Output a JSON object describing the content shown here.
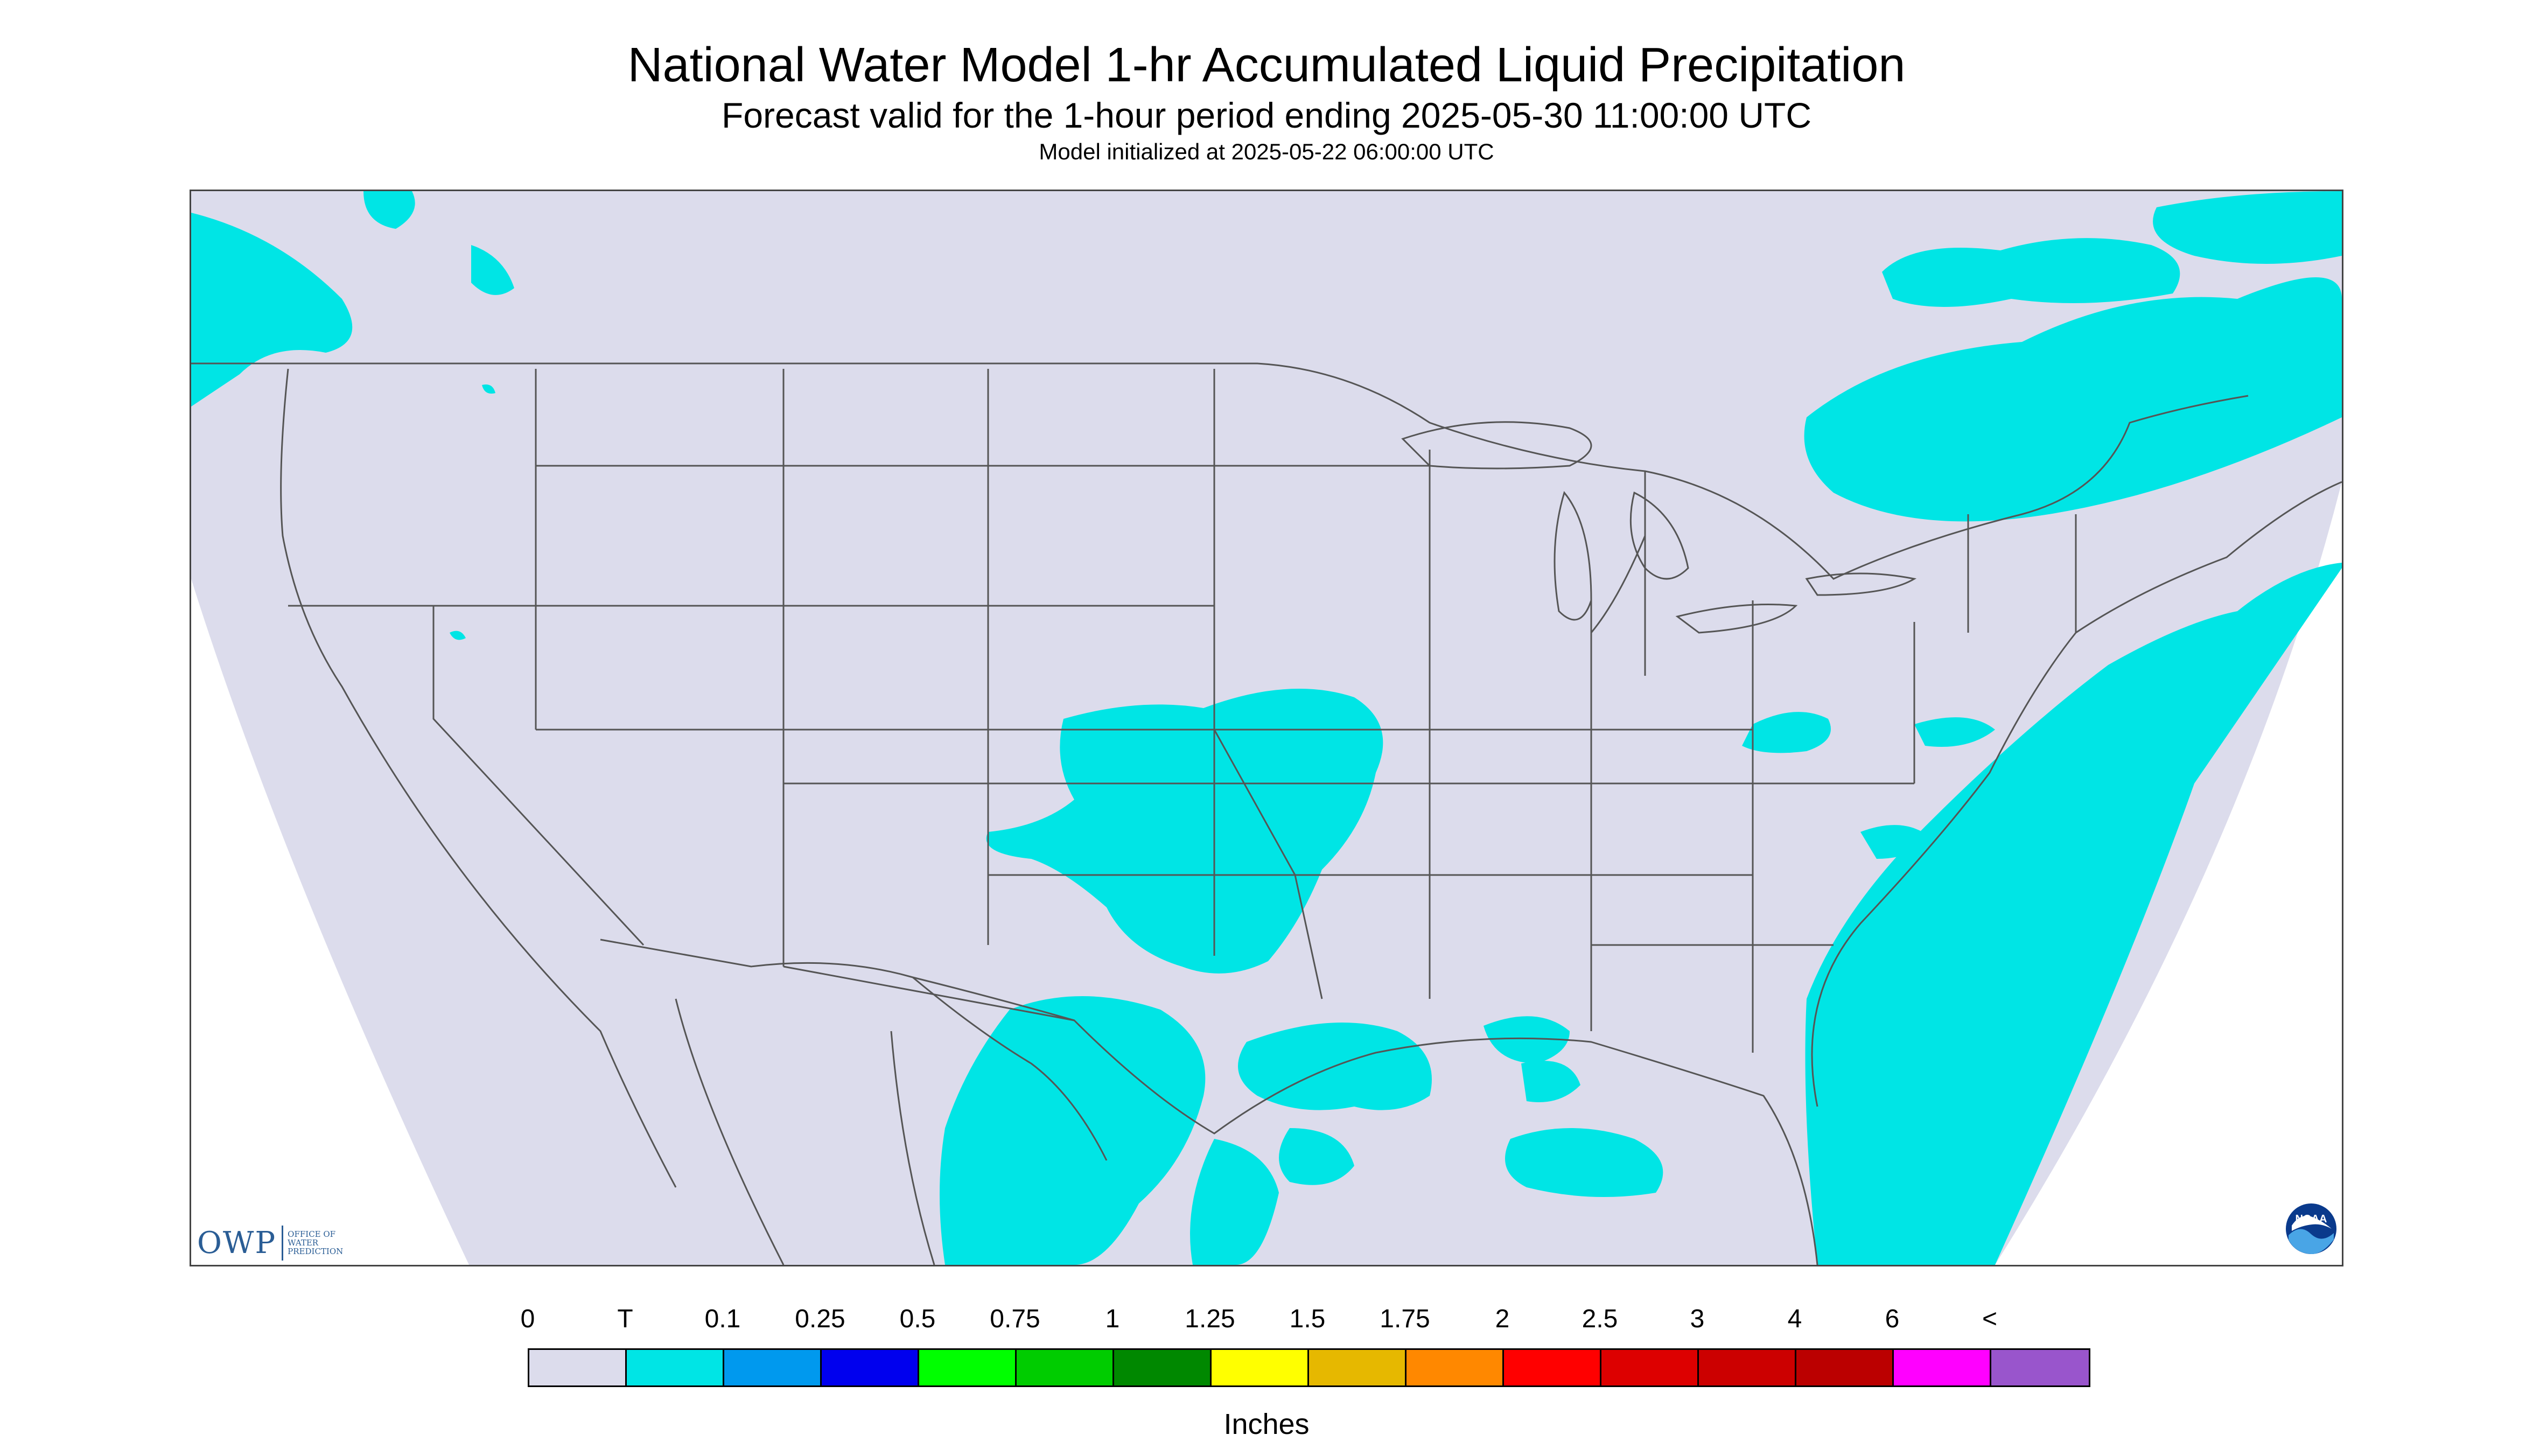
{
  "header": {
    "title": "National Water Model 1-hr Accumulated Liquid Precipitation",
    "subtitle": "Forecast valid for the 1-hour period ending 2025-05-30 11:00:00 UTC",
    "init_line": "Model initialized at 2025-05-22 06:00:00 UTC"
  },
  "map": {
    "region": "Continental United States",
    "background_color": "#dcdcec",
    "outside_domain_color": "#ffffff",
    "precip_color": "#00e5e5",
    "border_color": "#555555"
  },
  "logos": {
    "owp": {
      "text": "OWP",
      "sub": "OFFICE OF WATER PREDICTION"
    },
    "noaa": {
      "text": "NOAA"
    }
  },
  "legend": {
    "units": "Inches",
    "labels": [
      "0",
      "T",
      "0.1",
      "0.25",
      "0.5",
      "0.75",
      "1",
      "1.25",
      "1.5",
      "1.75",
      "2",
      "2.5",
      "3",
      "4",
      "6",
      "<"
    ],
    "colors": [
      "#dcdcec",
      "#00e5e5",
      "#0099ee",
      "#0000ee",
      "#00ff00",
      "#00cc00",
      "#008800",
      "#ffff00",
      "#e6b800",
      "#ff8800",
      "#ff0000",
      "#dd0000",
      "#cc0000",
      "#bb0000",
      "#ff00ff",
      "#9955cc"
    ]
  }
}
